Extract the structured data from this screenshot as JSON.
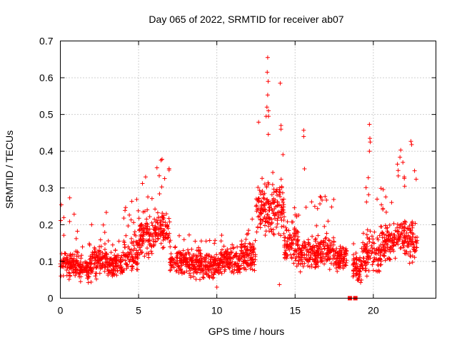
{
  "chart_data": {
    "type": "scatter",
    "title": "Day 065 of 2022, SRMTID for receiver ab07",
    "xlabel": "GPS time / hours",
    "ylabel": "SRMTID / TECUs",
    "xlim": [
      0,
      24
    ],
    "ylim": [
      0,
      0.7
    ],
    "x_ticks": [
      0,
      5,
      10,
      15,
      20
    ],
    "y_ticks": [
      0,
      0.1,
      0.2,
      0.3,
      0.4,
      0.5,
      0.6,
      0.7
    ],
    "x_tick_labels": [
      "0",
      "5",
      "10",
      "15",
      "20"
    ],
    "y_tick_labels": [
      "0",
      "0.1",
      "0.2",
      "0.3",
      "0.4",
      "0.5",
      "0.6",
      "0.7"
    ],
    "grid": true,
    "marker": "plus",
    "color": "#ff0000",
    "point_count_approx": 2200,
    "segments": [
      {
        "x_range": [
          0.0,
          1.0
        ],
        "base": 0.09,
        "spread": 0.05,
        "peak": 0.27
      },
      {
        "x_range": [
          1.0,
          2.0
        ],
        "base": 0.08,
        "spread": 0.05,
        "peak": 0.19
      },
      {
        "x_range": [
          2.0,
          3.0
        ],
        "base": 0.1,
        "spread": 0.06,
        "peak": 0.25
      },
      {
        "x_range": [
          3.0,
          4.0
        ],
        "base": 0.09,
        "spread": 0.05,
        "peak": 0.18
      },
      {
        "x_range": [
          4.0,
          5.0
        ],
        "base": 0.12,
        "spread": 0.07,
        "peak": 0.3
      },
      {
        "x_range": [
          5.0,
          6.0
        ],
        "base": 0.17,
        "spread": 0.08,
        "peak": 0.33
      },
      {
        "x_range": [
          6.0,
          7.0
        ],
        "base": 0.19,
        "spread": 0.08,
        "peak": 0.38
      },
      {
        "x_range": [
          7.0,
          8.5
        ],
        "base": 0.1,
        "spread": 0.05,
        "peak": 0.18
      },
      {
        "x_range": [
          8.5,
          10.0
        ],
        "base": 0.09,
        "spread": 0.05,
        "peak": 0.16
      },
      {
        "x_range": [
          10.0,
          11.5
        ],
        "base": 0.1,
        "spread": 0.05,
        "peak": 0.18
      },
      {
        "x_range": [
          11.5,
          12.5
        ],
        "base": 0.12,
        "spread": 0.06,
        "peak": 0.24
      },
      {
        "x_range": [
          12.5,
          13.3
        ],
        "base": 0.24,
        "spread": 0.1,
        "peak": 0.49
      },
      {
        "x_range": [
          13.3,
          14.3
        ],
        "base": 0.24,
        "spread": 0.11,
        "peak": 0.41
      },
      {
        "x_range": [
          14.3,
          15.2
        ],
        "base": 0.15,
        "spread": 0.07,
        "peak": 0.25
      },
      {
        "x_range": [
          15.2,
          16.5
        ],
        "base": 0.12,
        "spread": 0.06,
        "peak": 0.31
      },
      {
        "x_range": [
          16.5,
          17.5
        ],
        "base": 0.13,
        "spread": 0.06,
        "peak": 0.29
      },
      {
        "x_range": [
          17.5,
          18.3
        ],
        "base": 0.11,
        "spread": 0.05,
        "peak": 0.2
      },
      {
        "x_range": [
          18.7,
          19.3
        ],
        "base": 0.08,
        "spread": 0.05,
        "peak": 0.15
      },
      {
        "x_range": [
          19.3,
          20.5
        ],
        "base": 0.12,
        "spread": 0.08,
        "peak": 0.34
      },
      {
        "x_range": [
          20.5,
          21.5
        ],
        "base": 0.15,
        "spread": 0.07,
        "peak": 0.3
      },
      {
        "x_range": [
          21.5,
          22.2
        ],
        "base": 0.17,
        "spread": 0.07,
        "peak": 0.4
      },
      {
        "x_range": [
          22.2,
          22.8
        ],
        "base": 0.16,
        "spread": 0.08,
        "peak": 0.42
      }
    ],
    "notable_points": [
      {
        "x": 13.25,
        "y": 0.655
      },
      {
        "x": 13.22,
        "y": 0.615
      },
      {
        "x": 13.28,
        "y": 0.59
      },
      {
        "x": 13.25,
        "y": 0.553
      },
      {
        "x": 13.2,
        "y": 0.52
      },
      {
        "x": 13.3,
        "y": 0.51
      },
      {
        "x": 13.15,
        "y": 0.495
      },
      {
        "x": 13.3,
        "y": 0.495
      },
      {
        "x": 14.05,
        "y": 0.585
      },
      {
        "x": 14.1,
        "y": 0.47
      },
      {
        "x": 14.1,
        "y": 0.46
      },
      {
        "x": 15.55,
        "y": 0.457
      },
      {
        "x": 15.55,
        "y": 0.44
      },
      {
        "x": 15.6,
        "y": 0.352
      },
      {
        "x": 19.75,
        "y": 0.473
      },
      {
        "x": 19.78,
        "y": 0.435
      },
      {
        "x": 19.8,
        "y": 0.425
      },
      {
        "x": 19.75,
        "y": 0.4
      },
      {
        "x": 22.4,
        "y": 0.427
      },
      {
        "x": 22.45,
        "y": 0.418
      },
      {
        "x": 21.75,
        "y": 0.403
      },
      {
        "x": 6.5,
        "y": 0.378
      },
      {
        "x": 5.45,
        "y": 0.33
      },
      {
        "x": 0.6,
        "y": 0.273
      },
      {
        "x": 14.0,
        "y": 0.037
      },
      {
        "x": 10.0,
        "y": 0.03
      }
    ],
    "zero_markers": [
      {
        "x": 18.5,
        "y": 0.0
      },
      {
        "x": 18.85,
        "y": 0.0
      }
    ]
  }
}
